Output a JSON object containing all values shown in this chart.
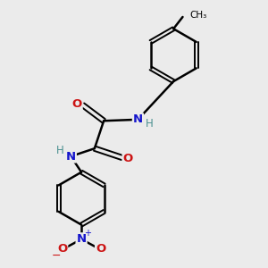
{
  "background_color": "#ebebeb",
  "atom_colors": {
    "C": "#000000",
    "N": "#1414cc",
    "O": "#cc1414",
    "H": "#4a9090"
  },
  "bond_color": "#000000",
  "figsize": [
    3.0,
    3.0
  ],
  "dpi": 100
}
